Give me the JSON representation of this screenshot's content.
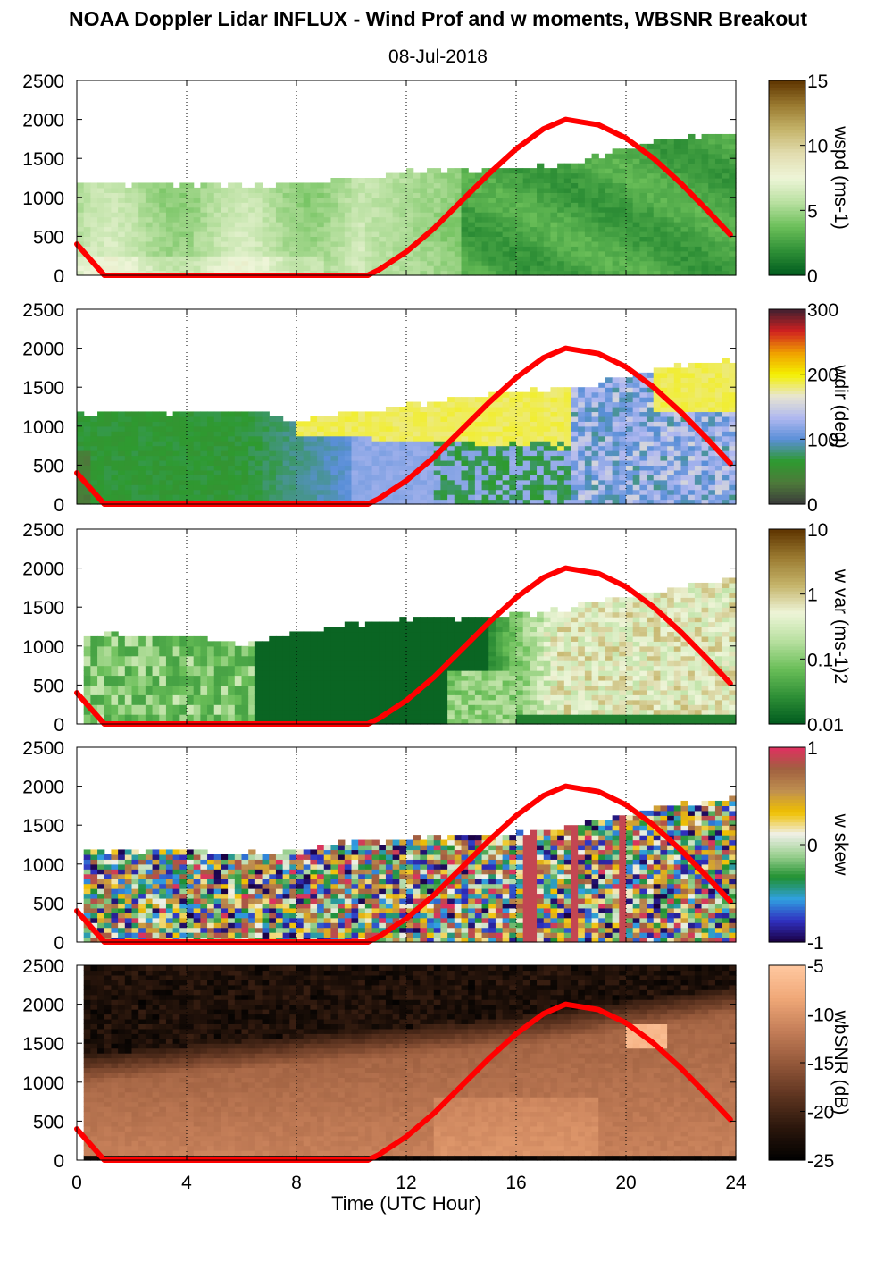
{
  "title": "NOAA Doppler Lidar INFLUX - Wind Prof and w moments, WBSNR Breakout",
  "subtitle": "08-Jul-2018",
  "xlabel": "Time (UTC Hour)",
  "x_ticks": [
    0,
    4,
    8,
    12,
    16,
    20,
    24
  ],
  "y_ticks": [
    0,
    500,
    1000,
    1500,
    2000,
    2500
  ],
  "chart_data": [
    {
      "type": "heatmap",
      "colorbar_label": "wspd (ms-1)",
      "colorbar_ticks": [
        "0",
        "5",
        "10",
        "15"
      ],
      "colormap": [
        "#005a1e",
        "#2e8f36",
        "#6bbf59",
        "#b8e0a0",
        "#eef5d8",
        "#e2ddb0",
        "#c5b46a",
        "#9a7a30",
        "#5e3400"
      ],
      "xlim": [
        0,
        24
      ],
      "ylim": [
        0,
        2500
      ],
      "top_height": {
        "x": [
          0,
          2,
          4,
          6,
          8,
          10,
          12,
          14,
          16,
          18,
          20,
          22,
          23.8
        ],
        "y": [
          1150,
          1150,
          1150,
          1100,
          1150,
          1200,
          1300,
          1330,
          1350,
          1400,
          1600,
          1750,
          1800
        ]
      },
      "overlay_line": {
        "color": "#ff0000",
        "x": [
          0,
          1,
          10.6,
          11,
          12,
          13,
          14,
          15,
          16,
          17,
          17.8,
          19,
          20,
          21,
          22,
          23,
          23.8
        ],
        "y": [
          400,
          0,
          0,
          70,
          300,
          600,
          950,
          1300,
          1620,
          1880,
          2000,
          1930,
          1760,
          1500,
          1180,
          820,
          520
        ]
      }
    },
    {
      "type": "heatmap",
      "colorbar_label": "wdir (deg)",
      "colorbar_ticks": [
        "0",
        "100",
        "200",
        "300"
      ],
      "colormap": [
        "#3a3a3a",
        "#4d7a3a",
        "#2e9a30",
        "#5a8fd8",
        "#b0b8f0",
        "#e8e6d0",
        "#f4f000",
        "#f0a000",
        "#d02020",
        "#402030"
      ],
      "xlim": [
        0,
        24
      ],
      "ylim": [
        0,
        2500
      ],
      "top_height": {
        "x": [
          0,
          2,
          4,
          6,
          8,
          10,
          12,
          14,
          16,
          18,
          20,
          22,
          23.8
        ],
        "y": [
          1150,
          1150,
          1150,
          1150,
          1050,
          1150,
          1250,
          1330,
          1400,
          1450,
          1600,
          1750,
          1800
        ]
      },
      "overlay_line": {
        "color": "#ff0000",
        "x": [
          0,
          1,
          10.6,
          11,
          12,
          13,
          14,
          15,
          16,
          17,
          17.8,
          19,
          20,
          21,
          22,
          23,
          23.8
        ],
        "y": [
          400,
          0,
          0,
          70,
          300,
          600,
          950,
          1300,
          1620,
          1880,
          2000,
          1930,
          1760,
          1500,
          1180,
          820,
          520
        ]
      }
    },
    {
      "type": "heatmap",
      "colorbar_label": "w var (ms-1)2",
      "colorbar_ticks": [
        "0.01",
        "0.1",
        "1",
        "10"
      ],
      "colormap": [
        "#005a1e",
        "#2e8f36",
        "#6bbf59",
        "#b8e0a0",
        "#eef5d8",
        "#c5b46a",
        "#9a7a30",
        "#5e3400"
      ],
      "xlim": [
        0,
        24
      ],
      "ylim": [
        0,
        2500
      ],
      "top_height": {
        "x": [
          0.2,
          2,
          4,
          6,
          8,
          10,
          12,
          14,
          16,
          18,
          20,
          22,
          23.8
        ],
        "y": [
          1100,
          1100,
          1100,
          1000,
          1150,
          1250,
          1300,
          1330,
          1350,
          1450,
          1600,
          1750,
          1800
        ]
      },
      "overlay_line": {
        "color": "#ff0000",
        "x": [
          0,
          1,
          10.6,
          11,
          12,
          13,
          14,
          15,
          16,
          17,
          17.8,
          19,
          20,
          21,
          22,
          23,
          23.8
        ],
        "y": [
          400,
          0,
          0,
          70,
          300,
          600,
          950,
          1300,
          1620,
          1880,
          2000,
          1930,
          1760,
          1500,
          1180,
          820,
          520
        ]
      }
    },
    {
      "type": "heatmap",
      "colorbar_label": "w skew",
      "colorbar_ticks": [
        "-1",
        "0",
        "1"
      ],
      "colormap": [
        "#1a0040",
        "#3030c0",
        "#30a0e0",
        "#209030",
        "#9ad090",
        "#f0f0e8",
        "#f0c000",
        "#c09050",
        "#a06040",
        "#e03060"
      ],
      "xlim": [
        0,
        24
      ],
      "ylim": [
        0,
        2500
      ],
      "top_height": {
        "x": [
          0.2,
          2,
          4,
          6,
          8,
          10,
          12,
          14,
          16,
          18,
          20,
          22,
          23.8
        ],
        "y": [
          1150,
          1150,
          1150,
          1100,
          1150,
          1250,
          1300,
          1330,
          1350,
          1450,
          1600,
          1750,
          1800
        ]
      },
      "overlay_line": {
        "color": "#ff0000",
        "x": [
          0,
          1,
          10.6,
          11,
          12,
          13,
          14,
          15,
          16,
          17,
          17.8,
          19,
          20,
          21,
          22,
          23,
          23.8
        ],
        "y": [
          400,
          0,
          0,
          70,
          300,
          600,
          950,
          1300,
          1620,
          1880,
          2000,
          1930,
          1760,
          1500,
          1180,
          820,
          520
        ]
      }
    },
    {
      "type": "heatmap",
      "colorbar_label": "wbSNR (dB)",
      "colorbar_ticks": [
        "-25",
        "-20",
        "-15",
        "-10",
        "-5"
      ],
      "colormap": [
        "#000000",
        "#2a160c",
        "#5e3420",
        "#94583a",
        "#c47e58",
        "#f0a878",
        "#ffc8a0"
      ],
      "xlim": [
        0,
        24
      ],
      "ylim": [
        0,
        2500
      ],
      "top_height": {
        "x": [
          0.2,
          24
        ],
        "y": [
          2500,
          2500
        ]
      },
      "overlay_line": {
        "color": "#ff0000",
        "x": [
          0,
          1,
          10.6,
          11,
          12,
          13,
          14,
          15,
          16,
          17,
          17.8,
          19,
          20,
          21,
          22,
          23,
          23.8
        ],
        "y": [
          400,
          0,
          0,
          70,
          300,
          600,
          950,
          1300,
          1620,
          1880,
          2000,
          1930,
          1760,
          1500,
          1180,
          820,
          520
        ]
      }
    }
  ]
}
